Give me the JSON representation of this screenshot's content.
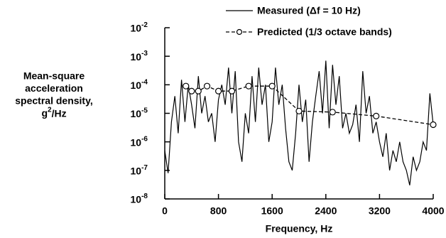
{
  "chart_data": {
    "type": "line",
    "log_y": true,
    "y_label": [
      "Mean-square",
      "acceleration",
      "spectral density,",
      "g2/Hz"
    ],
    "x_label": "Frequency, Hz",
    "xlim": [
      0,
      4000
    ],
    "xticks": [
      0,
      800,
      1600,
      2400,
      3200,
      4000
    ],
    "ylim": [
      1e-08,
      0.01
    ],
    "yticks": [
      {
        "value": 0.01,
        "label": "10-2"
      },
      {
        "value": 0.001,
        "label": "10-3"
      },
      {
        "value": 0.0001,
        "label": "10-4"
      },
      {
        "value": 1e-05,
        "label": "10-5"
      },
      {
        "value": 1e-06,
        "label": "10-6"
      },
      {
        "value": 1e-07,
        "label": "10-7"
      },
      {
        "value": 1e-08,
        "label": "10-8"
      }
    ],
    "series": [
      {
        "name": "Measured (Δf = 10 Hz)",
        "color": "#000000",
        "style": "solid",
        "x": [
          0,
          50,
          100,
          150,
          200,
          250,
          300,
          350,
          400,
          450,
          500,
          550,
          600,
          650,
          700,
          750,
          800,
          850,
          900,
          950,
          1000,
          1050,
          1100,
          1150,
          1200,
          1250,
          1300,
          1350,
          1400,
          1450,
          1500,
          1550,
          1600,
          1650,
          1700,
          1750,
          1800,
          1850,
          1900,
          1950,
          2000,
          2050,
          2100,
          2150,
          2200,
          2250,
          2300,
          2350,
          2400,
          2450,
          2500,
          2550,
          2600,
          2650,
          2700,
          2750,
          2800,
          2850,
          2900,
          2950,
          3000,
          3050,
          3100,
          3150,
          3200,
          3250,
          3300,
          3350,
          3400,
          3450,
          3500,
          3550,
          3600,
          3650,
          3700,
          3750,
          3800,
          3850,
          3900,
          3950,
          4000
        ],
        "values": [
          5e-07,
          8e-08,
          5e-06,
          4e-05,
          2e-06,
          0.00015,
          5e-06,
          0.0001,
          2e-05,
          3e-06,
          0.0002,
          1e-05,
          4e-05,
          5e-06,
          1e-05,
          1e-06,
          3e-05,
          0.0001,
          2e-05,
          0.0004,
          1e-05,
          0.0003,
          1e-06,
          2e-07,
          1e-05,
          2e-06,
          0.0002,
          5e-06,
          0.0004,
          2e-05,
          0.0001,
          1e-06,
          5e-06,
          0.0004,
          2e-05,
          0.0001,
          3e-06,
          2e-07,
          1e-07,
          2e-06,
          0.0001,
          5e-06,
          3e-05,
          2e-07,
          5e-06,
          4e-05,
          0.0003,
          1e-05,
          0.0007,
          3e-06,
          0.0005,
          2e-05,
          0.0002,
          3e-06,
          1e-05,
          2e-06,
          4e-06,
          2e-05,
          1e-06,
          0.0003,
          1e-05,
          4e-05,
          2e-06,
          5e-06,
          1e-06,
          3e-07,
          2e-06,
          1e-07,
          5e-07,
          2e-07,
          1e-06,
          2e-07,
          1e-07,
          3e-08,
          3e-07,
          1e-07,
          2e-07,
          1e-06,
          5e-07,
          5e-05,
          4e-06
        ]
      },
      {
        "name": "Predicted (1/3 octave bands)",
        "color": "#000000",
        "style": "dashed",
        "markers": true,
        "x": [
          315,
          400,
          500,
          630,
          800,
          1000,
          1250,
          1600,
          2000,
          2500,
          3150,
          4000
        ],
        "values": [
          9e-05,
          6e-05,
          6e-05,
          9e-05,
          6e-05,
          6e-05,
          9e-05,
          9e-05,
          1.2e-05,
          1.1e-05,
          8e-06,
          4e-06
        ]
      }
    ]
  }
}
